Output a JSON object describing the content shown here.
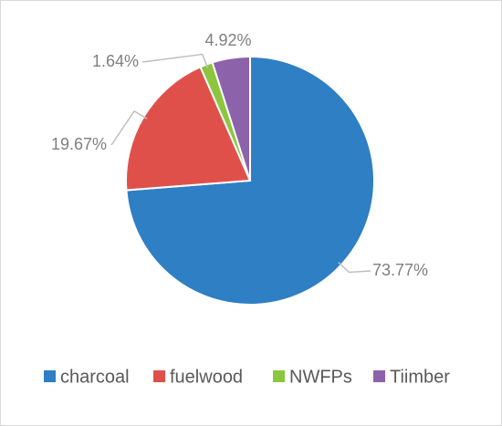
{
  "chart_data": {
    "type": "pie",
    "categories": [
      "charcoal",
      "fuelwood",
      "NWFPs",
      "Tiimber"
    ],
    "values": [
      73.77,
      19.67,
      1.64,
      4.92
    ],
    "value_labels": [
      "73.77%",
      "19.67%",
      "1.64%",
      "4.92%"
    ],
    "colors": [
      "#2e7fc4",
      "#e0504b",
      "#8cc63e",
      "#8c62aa"
    ],
    "legend": "bottom"
  }
}
